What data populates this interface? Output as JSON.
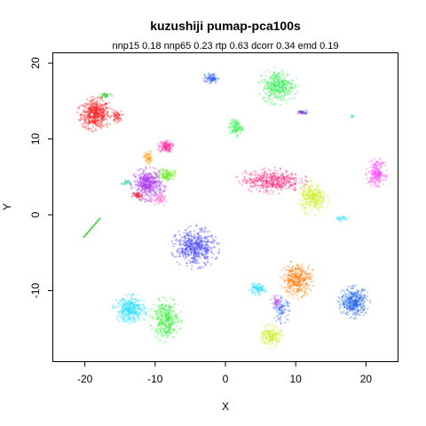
{
  "chart_data": {
    "type": "scatter",
    "title": "kuzushiji pumap-pca100s",
    "subtitle": "nnp15 0.18 nnp65 0.23 rtp 0.63 dcorr 0.34 emd 0.19",
    "xlabel": "X",
    "ylabel": "Y",
    "xlim": [
      -24.5,
      24.5
    ],
    "ylim": [
      -19.3,
      21.3
    ],
    "x_ticks": [
      -20,
      -10,
      0,
      10,
      20
    ],
    "y_ticks": [
      -10,
      0,
      10,
      20
    ],
    "x_tick_labels": [
      "-20",
      "-10",
      "0",
      "10",
      "20"
    ],
    "y_tick_labels": [
      "-10",
      "0",
      "10",
      "20"
    ],
    "grid": false,
    "legend": "none",
    "clusters": [
      {
        "color": "#ff1a1a",
        "cx": -18.5,
        "cy": 13.3,
        "rx": 2.2,
        "ry": 2.0,
        "n": 520
      },
      {
        "color": "#ff1a1a",
        "cx": -15.5,
        "cy": 13.0,
        "rx": 0.8,
        "ry": 0.8,
        "n": 60
      },
      {
        "color": "#ff1a1a",
        "cx": -12.5,
        "cy": 2.5,
        "rx": 0.8,
        "ry": 0.6,
        "n": 50
      },
      {
        "color": "#33cc33",
        "cx": -17.0,
        "cy": 15.8,
        "rx": 1.0,
        "ry": 0.4,
        "n": 40
      },
      {
        "color": "#ff2aa0",
        "cx": -8.5,
        "cy": 9.0,
        "rx": 1.0,
        "ry": 0.8,
        "n": 140
      },
      {
        "color": "#ff9900",
        "cx": -11.0,
        "cy": 7.5,
        "rx": 0.6,
        "ry": 1.0,
        "n": 60
      },
      {
        "color": "#aa33ee",
        "cx": -11.0,
        "cy": 4.0,
        "rx": 2.2,
        "ry": 2.0,
        "n": 480
      },
      {
        "color": "#66ee22",
        "cx": -8.3,
        "cy": 5.3,
        "rx": 1.2,
        "ry": 0.8,
        "n": 130
      },
      {
        "color": "#ff66cc",
        "cx": -9.5,
        "cy": 2.0,
        "rx": 1.0,
        "ry": 0.8,
        "n": 60
      },
      {
        "color": "#22ccaa",
        "cx": -14.2,
        "cy": 4.2,
        "rx": 0.6,
        "ry": 0.4,
        "n": 25
      },
      {
        "color": "#2255ee",
        "cx": -2.0,
        "cy": 18.0,
        "rx": 1.0,
        "ry": 0.7,
        "n": 80
      },
      {
        "color": "#22ee44",
        "cx": 7.5,
        "cy": 17.0,
        "rx": 2.5,
        "ry": 2.2,
        "n": 360
      },
      {
        "color": "#6622cc",
        "cx": 11.0,
        "cy": 13.5,
        "rx": 0.8,
        "ry": 0.3,
        "n": 30
      },
      {
        "color": "#22ee44",
        "cx": 1.5,
        "cy": 11.5,
        "rx": 1.0,
        "ry": 1.1,
        "n": 110
      },
      {
        "color": "#22ddcc",
        "cx": 18.0,
        "cy": 13.0,
        "rx": 0.3,
        "ry": 0.3,
        "n": 8
      },
      {
        "color": "#ff2277",
        "cx": 6.5,
        "cy": 4.5,
        "rx": 4.5,
        "ry": 1.5,
        "n": 460
      },
      {
        "color": "#ccee22",
        "cx": 12.5,
        "cy": 2.2,
        "rx": 2.0,
        "ry": 2.0,
        "n": 330
      },
      {
        "color": "#ff44ff",
        "cx": 21.5,
        "cy": 5.5,
        "rx": 1.3,
        "ry": 1.7,
        "n": 220
      },
      {
        "color": "#22ddff",
        "cx": 16.5,
        "cy": -0.5,
        "rx": 1.2,
        "ry": 0.4,
        "n": 30
      },
      {
        "color": "#3333ff",
        "cx": -4.3,
        "cy": -4.3,
        "rx": 3.0,
        "ry": 2.5,
        "n": 500
      },
      {
        "color": "#ff7700",
        "cx": 10.2,
        "cy": -8.5,
        "rx": 2.2,
        "ry": 2.2,
        "n": 380
      },
      {
        "color": "#22ddff",
        "cx": 4.5,
        "cy": -9.8,
        "rx": 1.3,
        "ry": 0.7,
        "n": 100
      },
      {
        "color": "#2266ff",
        "cx": 8.0,
        "cy": -12.5,
        "rx": 1.2,
        "ry": 1.6,
        "n": 90
      },
      {
        "color": "#aa33ee",
        "cx": 7.3,
        "cy": -11.5,
        "rx": 0.8,
        "ry": 1.0,
        "n": 40
      },
      {
        "color": "#2266ee",
        "cx": 18.3,
        "cy": -11.5,
        "rx": 2.0,
        "ry": 1.9,
        "n": 430
      },
      {
        "color": "#22ddff",
        "cx": -13.5,
        "cy": -12.5,
        "rx": 2.2,
        "ry": 1.8,
        "n": 380
      },
      {
        "color": "#33ee33",
        "cx": -8.5,
        "cy": -13.8,
        "rx": 2.0,
        "ry": 2.6,
        "n": 380
      },
      {
        "color": "#ccee22",
        "cx": 6.5,
        "cy": -16.0,
        "rx": 1.5,
        "ry": 1.4,
        "n": 200
      }
    ],
    "lines": [
      {
        "color": "#33cc33",
        "x": [
          -20.2,
          -17.8
        ],
        "y": [
          -3.0,
          -0.4
        ]
      }
    ]
  }
}
